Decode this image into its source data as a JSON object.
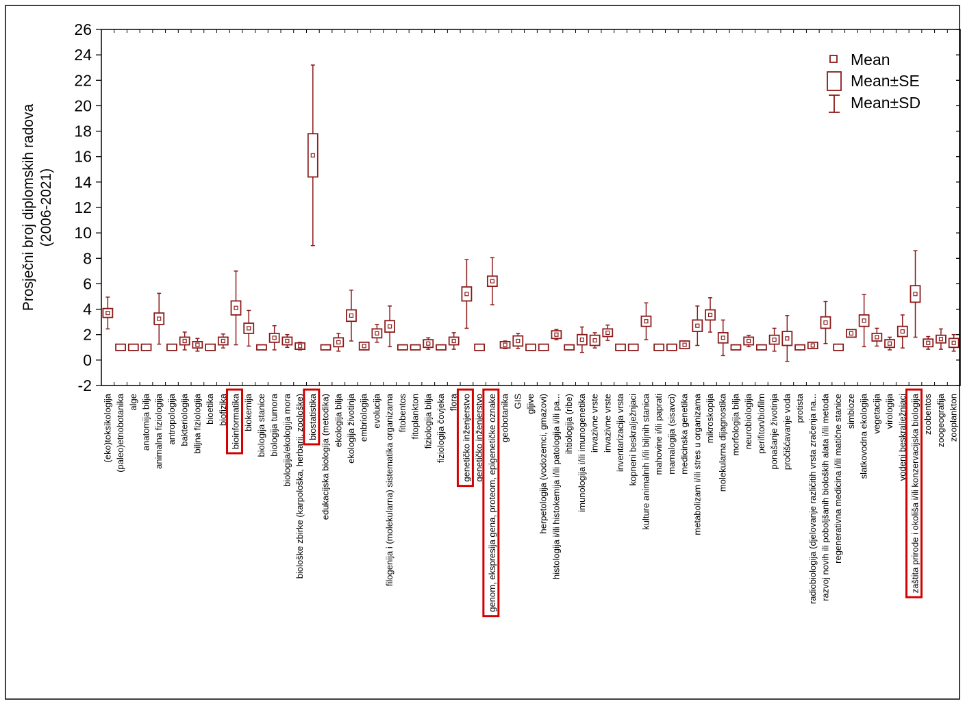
{
  "chart_data": {
    "type": "box",
    "ylabel_line1": "Prosječni broj diplomskih radova",
    "ylabel_line2": "(2006-2021)",
    "ylim": [
      -2,
      26
    ],
    "yticks": [
      -2,
      0,
      2,
      4,
      6,
      8,
      10,
      12,
      14,
      16,
      18,
      20,
      22,
      24,
      26
    ],
    "grid": false,
    "legend_position": "top-right",
    "legend": [
      "Mean",
      "Mean±SE",
      "Mean±SD"
    ],
    "color": "#8b1a1a",
    "highlight_color": "#d40000",
    "categories": [
      "(eko)toksikologija",
      "(paleo)etnobotanika",
      "alge",
      "anatomija bilja",
      "animalna fiziologija",
      "antropologija",
      "bakteriologija",
      "biljna fiziologija",
      "bioetika",
      "biofizika",
      "bioinformatika",
      "biokemija",
      "biologija stanice",
      "biologija tumora",
      "biologija/ekologija mora",
      "biološke zbirke (karpološka, herbarij, zoološke)",
      "biostatistika",
      "edukacijska biologija (metodika)",
      "ekologija bilja",
      "ekologija životinja",
      "embriologija",
      "evolucija",
      "filogenija i (molekularna) sistematika organizama",
      "fitobentos",
      "fitoplankton",
      "fiziologija bilja",
      "fiziologija čovjeka",
      "flora",
      "genetičko inženjerstvo",
      "genetičko inženjerstvo",
      "genom, ekspresija gena, proteom, epigenetičke oznake",
      "geobotanika",
      "GIS",
      "gljive",
      "herpetologija (vodozemci, gmazovi)",
      "histologija i/ili histokemija i/ili patologija i/ili pa...",
      "ihtiologija (ribe)",
      "imunologija i/ili imunogenetika",
      "invazivne vrste",
      "invazivne vrste",
      "inventarizacija vrsta",
      "kopneni beskralježnjaci",
      "kulture animalnih i/ili biljnih stanica",
      "mahovine i/ili paprati",
      "mamalogija (sisavci)",
      "medicinska genetika",
      "metabolizam i/ili stres u organizama",
      "mikroskopija",
      "molekularna dijagnostika",
      "morfologija bilja",
      "neurobiologija",
      "perifiton/biofilm",
      "ponašanje životinja",
      "pročišćavanje voda",
      "protista",
      "radiobiologija (djelovanje različitih vrsta zračenja na...",
      "razvoj novih ili poboljšanih bioloških alata i/ili metoda",
      "regenerativna medicina i/ili matične stanice",
      "simbioze",
      "slatkovodna ekologija",
      "vegetacija",
      "virologija",
      "vodeni beskralježnjaci",
      "zaštita prirode i okoliša i/ili konzervacijska biologija",
      "zoobentos",
      "zoogeografija",
      "zooplankton"
    ],
    "mean": [
      3.7,
      1.0,
      1.0,
      1.0,
      3.25,
      1.0,
      1.5,
      1.2,
      1.0,
      1.5,
      4.1,
      2.5,
      1.0,
      1.75,
      1.5,
      1.1,
      16.1,
      1.0,
      1.4,
      3.5,
      1.1,
      2.1,
      2.65,
      1.0,
      1.0,
      1.3,
      1.0,
      1.5,
      5.2,
      1.0,
      6.2,
      1.2,
      1.5,
      1.0,
      1.0,
      2.0,
      1.0,
      1.6,
      1.55,
      2.15,
      1.0,
      1.0,
      3.05,
      1.0,
      1.0,
      1.2,
      2.7,
      3.55,
      1.75,
      1.0,
      1.5,
      1.0,
      1.6,
      1.7,
      1.0,
      1.15,
      2.95,
      1.0,
      2.1,
      3.1,
      1.8,
      1.3,
      2.25,
      5.2,
      1.35,
      1.65,
      1.35
    ],
    "se": [
      0.35,
      0.25,
      0.25,
      0.25,
      0.45,
      0.25,
      0.3,
      0.25,
      0.25,
      0.3,
      0.55,
      0.4,
      0.2,
      0.35,
      0.3,
      0.25,
      1.7,
      0.2,
      0.35,
      0.45,
      0.3,
      0.35,
      0.45,
      0.2,
      0.2,
      0.3,
      0.2,
      0.3,
      0.55,
      0.25,
      0.4,
      0.25,
      0.4,
      0.25,
      0.25,
      0.3,
      0.2,
      0.4,
      0.4,
      0.3,
      0.25,
      0.25,
      0.4,
      0.25,
      0.25,
      0.3,
      0.45,
      0.4,
      0.4,
      0.2,
      0.3,
      0.2,
      0.35,
      0.55,
      0.2,
      0.25,
      0.45,
      0.25,
      0.3,
      0.45,
      0.3,
      0.3,
      0.4,
      0.65,
      0.3,
      0.3,
      0.35
    ],
    "sd": [
      1.25,
      0,
      0,
      0,
      2.0,
      0,
      0.7,
      0.5,
      0,
      0.55,
      2.9,
      1.4,
      0,
      0.95,
      0.5,
      0.3,
      7.1,
      0,
      0.7,
      2.0,
      0.3,
      0.7,
      1.6,
      0,
      0,
      0.45,
      0,
      0.65,
      2.7,
      0,
      1.85,
      0.3,
      0.6,
      0,
      0,
      0.4,
      0,
      1.0,
      0.6,
      0.6,
      0,
      0,
      1.45,
      0,
      0,
      0.3,
      1.55,
      1.35,
      1.4,
      0,
      0.45,
      0,
      0.9,
      1.8,
      0,
      0.25,
      1.65,
      0,
      0.2,
      2.05,
      0.7,
      0.5,
      1.3,
      3.4,
      0.5,
      0.8,
      0.65
    ],
    "highlighted": [
      10,
      16,
      28,
      30,
      63
    ]
  }
}
